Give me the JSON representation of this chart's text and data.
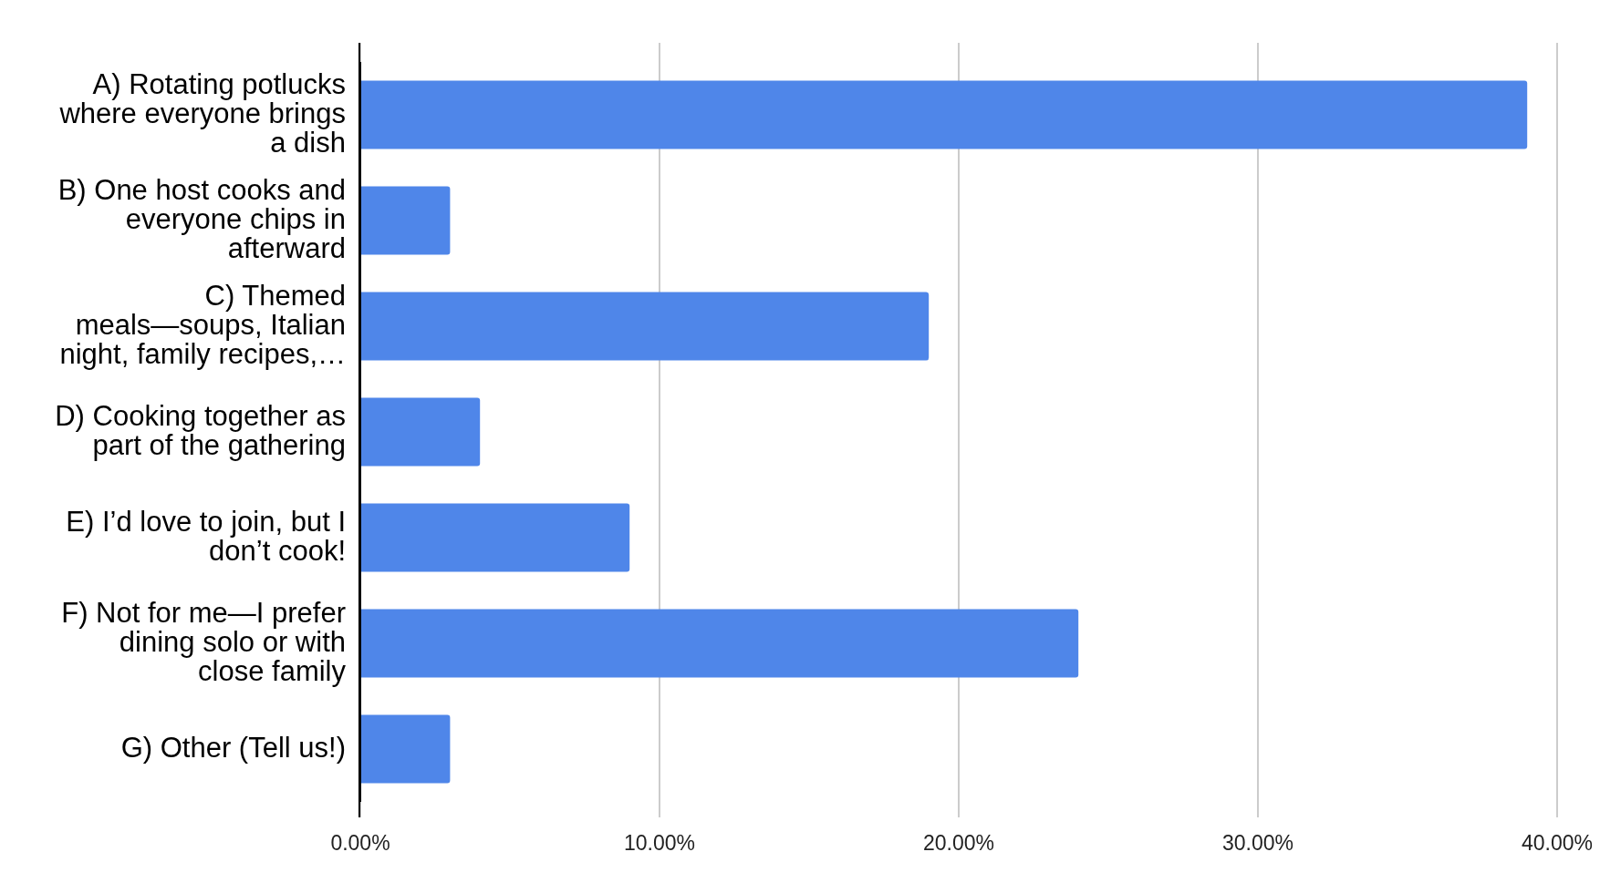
{
  "chart_data": {
    "type": "bar",
    "orientation": "horizontal",
    "categories": [
      "A) Rotating potlucks where everyone brings a dish",
      "B) One host cooks and everyone chips in afterward",
      "C) Themed meals—soups, Italian night, family recipes,…",
      "D) Cooking together as part of the gathering",
      "E) I’d love to join, but I don’t cook!",
      "F) Not for me—I prefer dining solo or with close family",
      "G) Other (Tell us!)"
    ],
    "values": [
      39,
      3,
      19,
      4,
      9,
      24,
      3
    ],
    "color": "#4f86e9",
    "xlim": [
      0,
      40
    ],
    "xticks": [
      {
        "value": 0,
        "label": "0.00%"
      },
      {
        "value": 10,
        "label": "10.00%"
      },
      {
        "value": 20,
        "label": "20.00%"
      },
      {
        "value": 30,
        "label": "30.00%"
      },
      {
        "value": 40,
        "label": "40.00%"
      }
    ],
    "grid": "x"
  }
}
